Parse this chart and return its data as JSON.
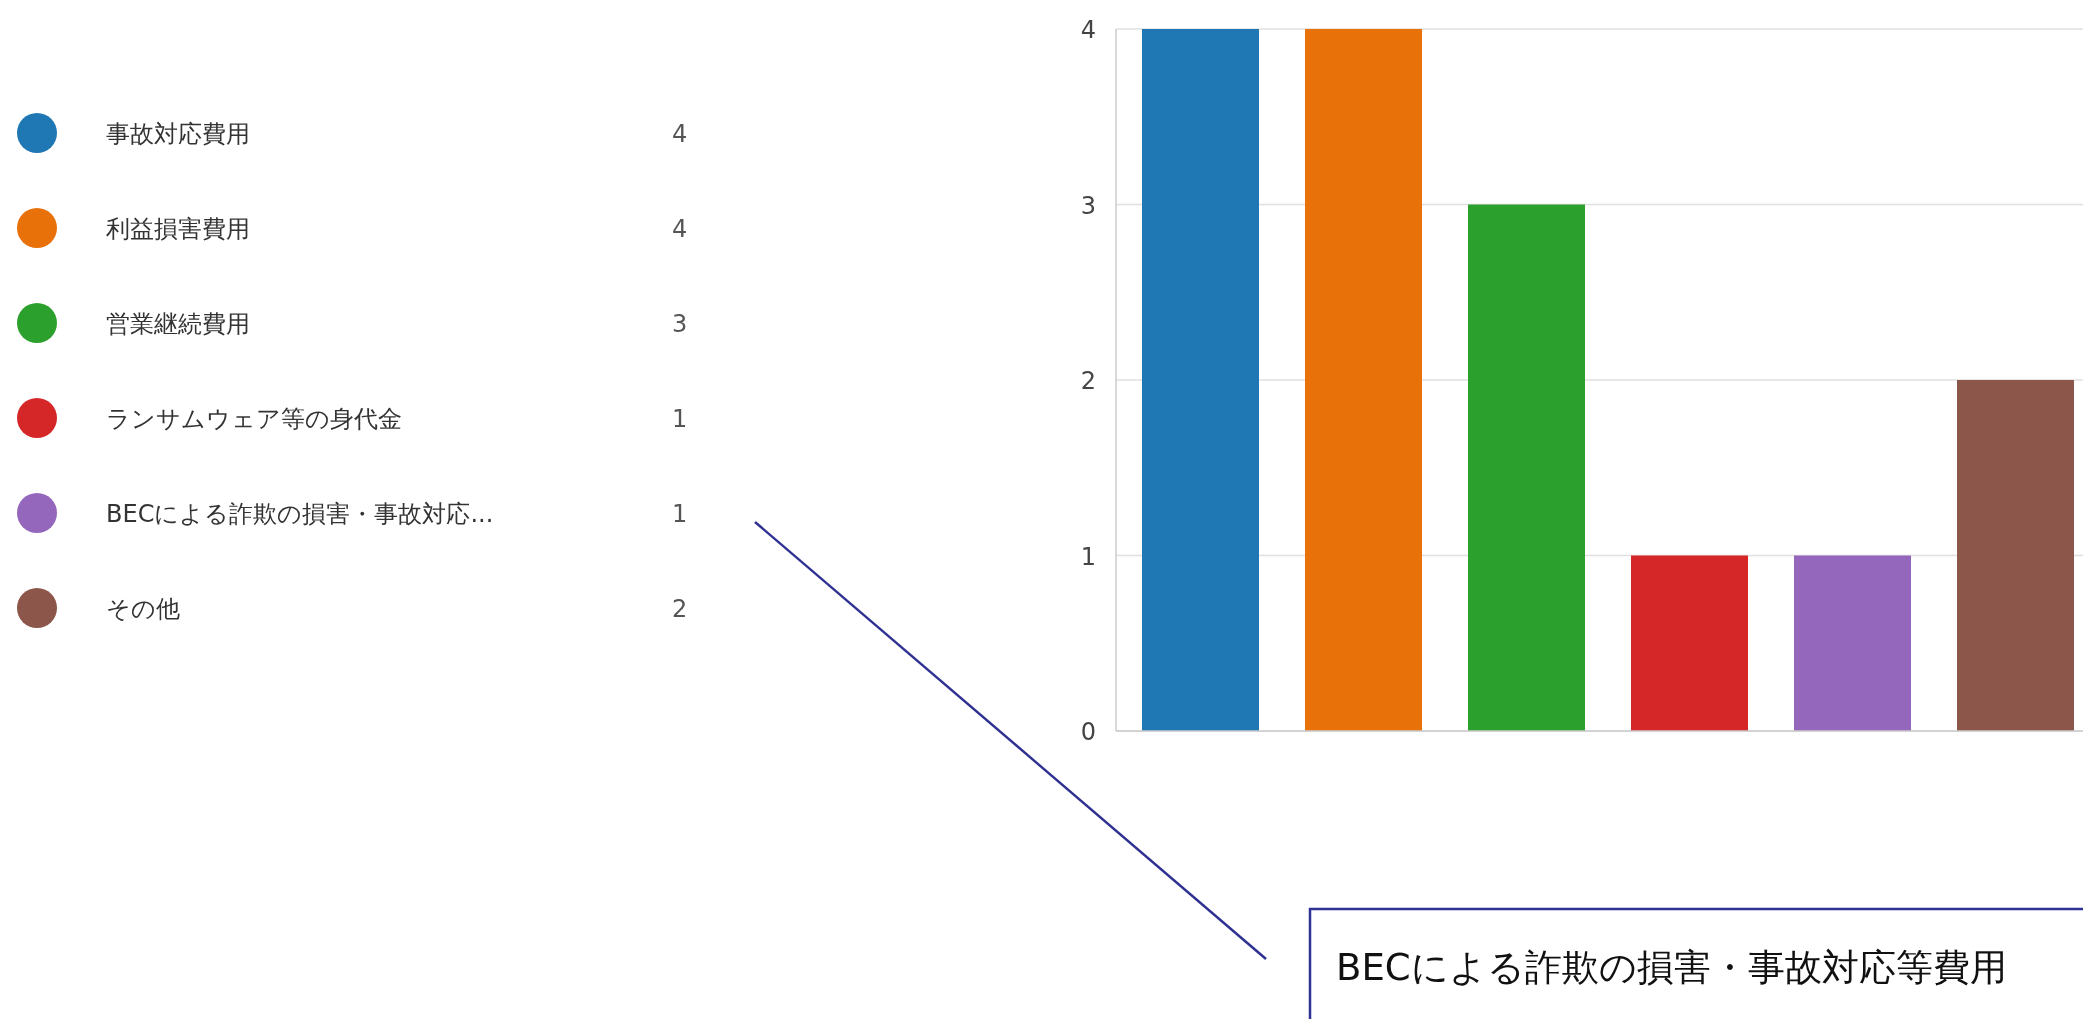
{
  "chart_data": {
    "type": "bar",
    "categories": [
      null,
      null,
      null,
      null,
      null,
      null
    ],
    "series": [
      {
        "name": "事故対応費用",
        "color": "#1f77b4",
        "values": [
          4,
          null,
          null,
          null,
          null,
          null
        ]
      },
      {
        "name": "利益損害費用",
        "color": "#e8710a",
        "values": [
          null,
          4,
          null,
          null,
          null,
          null
        ]
      },
      {
        "name": "営業継続費用",
        "color": "#2ca02c",
        "values": [
          null,
          null,
          3,
          null,
          null,
          null
        ]
      },
      {
        "name": "ランサムウェア等の身代金",
        "color": "#d62728",
        "values": [
          null,
          null,
          null,
          1,
          null,
          null
        ]
      },
      {
        "name": "BECによる詐欺の損害・事故対応...",
        "color": "#9467bd",
        "values": [
          null,
          null,
          null,
          null,
          1,
          null
        ]
      },
      {
        "name": "その他",
        "color": "#8c564b",
        "values": [
          null,
          null,
          null,
          null,
          null,
          2
        ]
      }
    ],
    "ylim": [
      0,
      4
    ],
    "yticks": [
      0,
      1,
      2,
      3,
      4
    ],
    "grid": "y",
    "legend": "left",
    "annotations": [
      "4",
      "4",
      "3",
      "1",
      "1",
      "2",
      "BECによる詐欺の損害・事故対応等費用"
    ]
  }
}
